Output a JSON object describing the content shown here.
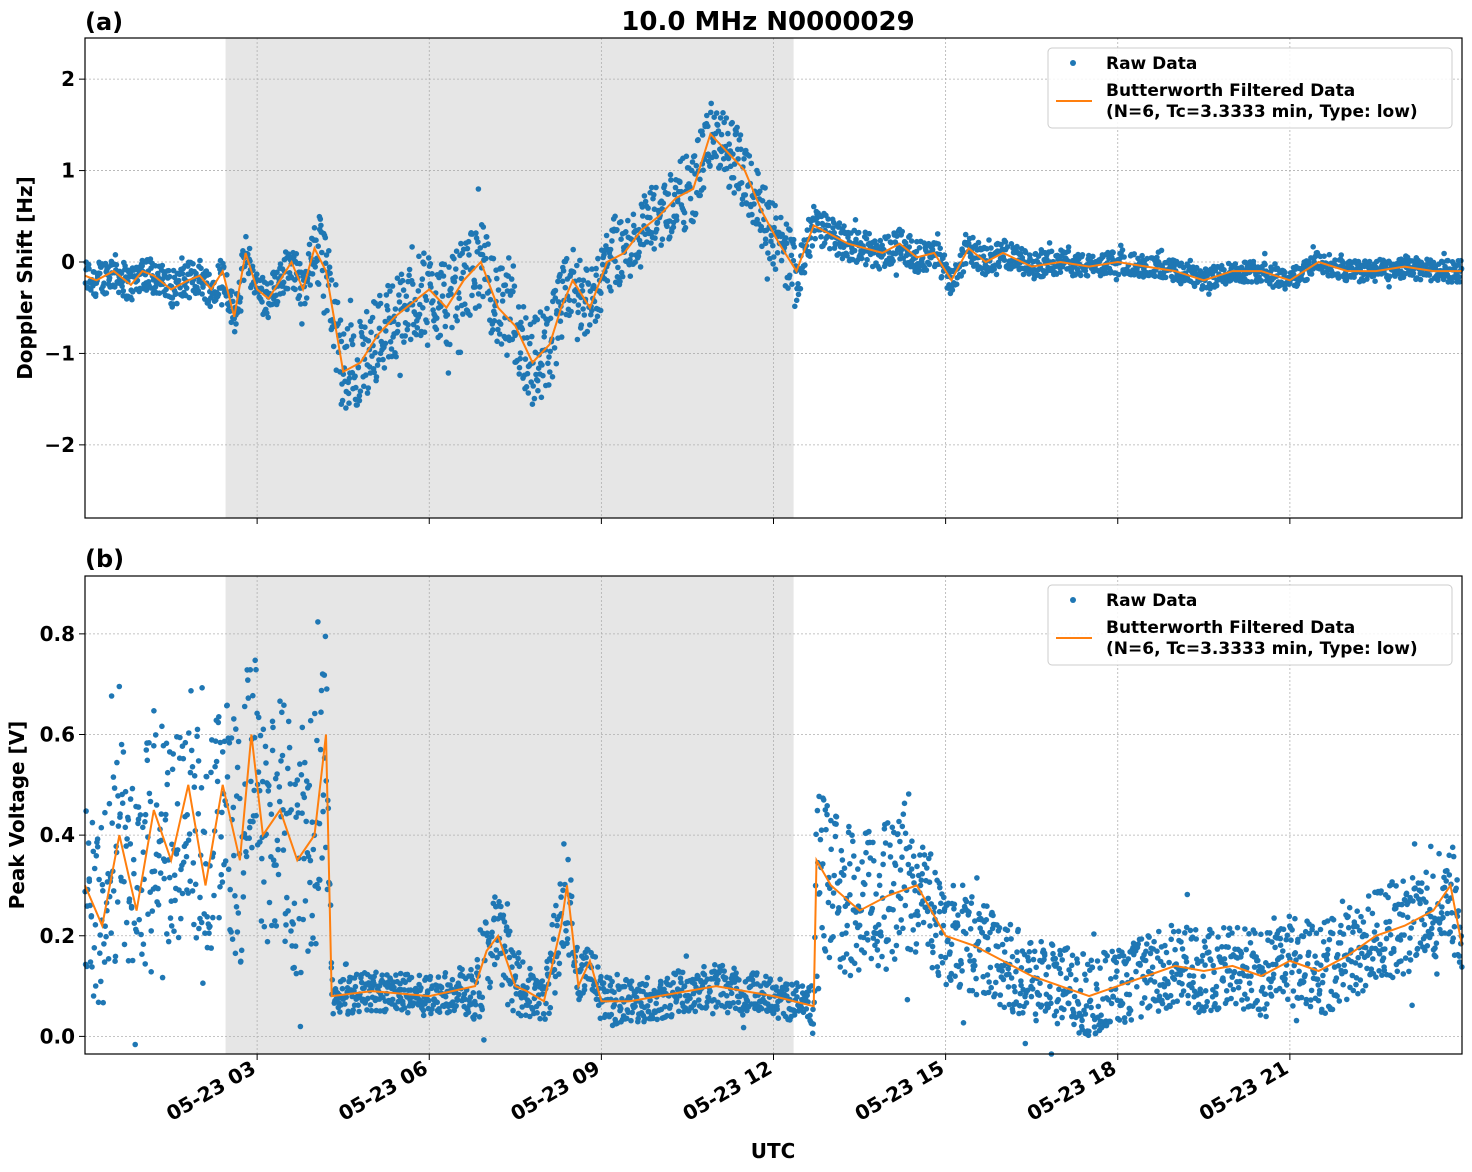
{
  "figure": {
    "title": "10.0 MHz N0000029",
    "xlabel": "UTC",
    "x_tick_labels": [
      "05-23 03",
      "05-23 06",
      "05-23 09",
      "05-23 12",
      "05-23 15",
      "05-23 18",
      "05-23 21"
    ]
  },
  "colors": {
    "raw": "#1f77b4",
    "filtered": "#ff7f0e",
    "shade": "#e6e6e6"
  },
  "legend": {
    "raw_label": "Raw Data",
    "filtered_line1": "Butterworth Filtered Data",
    "filtered_line2": "(N=6, Tc=3.3333 min, Type: low)"
  },
  "chart_data": [
    {
      "panel_label": "(a)",
      "type": "scatter",
      "ylabel": "Doppler Shift [Hz]",
      "xlim": [
        0,
        24
      ],
      "ylim": [
        -2.8,
        2.45
      ],
      "x_unit": "hours UTC on 05-23",
      "y_ticks": [
        -2,
        -1,
        0,
        1,
        2
      ],
      "y_tick_labels": [
        "−2",
        "−1",
        "0",
        "1",
        "2"
      ],
      "x_ticks": [
        3,
        6,
        9,
        12,
        15,
        18,
        21
      ],
      "shaded_span": [
        2.45,
        12.35
      ],
      "grid": true,
      "legend_position": "top-right",
      "filtered": {
        "x": [
          0,
          0.2,
          0.5,
          0.8,
          1.0,
          1.2,
          1.5,
          1.8,
          2.0,
          2.2,
          2.4,
          2.6,
          2.8,
          3.0,
          3.2,
          3.4,
          3.6,
          3.8,
          4.0,
          4.2,
          4.5,
          4.8,
          5.1,
          5.4,
          5.7,
          6.0,
          6.3,
          6.6,
          6.9,
          7.2,
          7.5,
          7.8,
          8.1,
          8.3,
          8.5,
          8.8,
          9.1,
          9.4,
          9.7,
          10.0,
          10.3,
          10.6,
          10.9,
          11.2,
          11.5,
          11.8,
          12.1,
          12.4,
          12.7,
          13.0,
          13.3,
          13.6,
          13.9,
          14.2,
          14.5,
          14.8,
          15.1,
          15.4,
          15.7,
          16.0,
          16.5,
          17.0,
          17.5,
          18.0,
          18.5,
          19.0,
          19.5,
          20.0,
          20.5,
          21.0,
          21.5,
          22.0,
          22.5,
          23.0,
          23.5,
          24.0
        ],
        "y": [
          -0.15,
          -0.2,
          -0.1,
          -0.25,
          -0.1,
          -0.15,
          -0.3,
          -0.2,
          -0.15,
          -0.3,
          -0.1,
          -0.6,
          0.1,
          -0.3,
          -0.4,
          -0.2,
          0.0,
          -0.3,
          0.15,
          -0.1,
          -1.2,
          -1.1,
          -0.8,
          -0.6,
          -0.45,
          -0.3,
          -0.5,
          -0.2,
          0.0,
          -0.5,
          -0.7,
          -1.1,
          -0.9,
          -0.5,
          -0.2,
          -0.5,
          0.0,
          0.1,
          0.35,
          0.5,
          0.7,
          0.8,
          1.4,
          1.2,
          1.0,
          0.55,
          0.2,
          -0.1,
          0.4,
          0.3,
          0.2,
          0.15,
          0.1,
          0.2,
          0.05,
          0.1,
          -0.2,
          0.15,
          0.0,
          0.1,
          -0.05,
          0.0,
          -0.05,
          0.0,
          -0.05,
          -0.1,
          -0.2,
          -0.1,
          -0.1,
          -0.2,
          0.0,
          -0.1,
          -0.1,
          -0.05,
          -0.1,
          -0.1
        ]
      },
      "raw_spread": {
        "x": [
          0,
          2.4,
          2.45,
          4.0,
          4.1,
          6.0,
          8.0,
          8.5,
          9.0,
          10.5,
          11.5,
          12.4,
          12.8,
          13.0,
          16.0,
          18.0,
          24.0
        ],
        "halfwidth": [
          0.2,
          0.2,
          0.2,
          0.25,
          0.5,
          0.45,
          0.5,
          0.4,
          0.35,
          0.4,
          0.4,
          0.35,
          0.2,
          0.2,
          0.15,
          0.12,
          0.12
        ]
      }
    },
    {
      "panel_label": "(b)",
      "type": "scatter",
      "ylabel": "Peak Voltage [V]",
      "xlim": [
        0,
        24
      ],
      "ylim": [
        -0.035,
        0.915
      ],
      "x_unit": "hours UTC on 05-23",
      "y_ticks": [
        0.0,
        0.2,
        0.4,
        0.6,
        0.8
      ],
      "y_tick_labels": [
        "0.0",
        "0.2",
        "0.4",
        "0.6",
        "0.8"
      ],
      "x_ticks": [
        3,
        6,
        9,
        12,
        15,
        18,
        21
      ],
      "shaded_span": [
        2.45,
        12.35
      ],
      "grid": true,
      "legend_position": "top-right",
      "filtered": {
        "x": [
          0,
          0.3,
          0.6,
          0.9,
          1.2,
          1.5,
          1.8,
          2.1,
          2.4,
          2.7,
          2.9,
          3.1,
          3.4,
          3.7,
          4.0,
          4.2,
          4.3,
          5.0,
          6.0,
          6.8,
          7.0,
          7.2,
          7.5,
          7.7,
          8.0,
          8.3,
          8.4,
          8.6,
          8.8,
          9.0,
          9.5,
          10.0,
          11.0,
          12.0,
          12.7,
          12.75,
          13.0,
          13.5,
          14.0,
          14.5,
          15.0,
          15.5,
          16.0,
          16.5,
          17.0,
          17.5,
          18.0,
          18.5,
          19.0,
          19.5,
          20.0,
          20.5,
          21.0,
          21.5,
          22.0,
          22.5,
          23.0,
          23.5,
          23.8,
          24.0
        ],
        "y": [
          0.3,
          0.22,
          0.4,
          0.25,
          0.45,
          0.35,
          0.5,
          0.3,
          0.5,
          0.35,
          0.6,
          0.4,
          0.45,
          0.35,
          0.4,
          0.6,
          0.08,
          0.09,
          0.08,
          0.1,
          0.17,
          0.2,
          0.1,
          0.09,
          0.07,
          0.22,
          0.3,
          0.1,
          0.15,
          0.07,
          0.07,
          0.08,
          0.1,
          0.08,
          0.06,
          0.35,
          0.3,
          0.25,
          0.28,
          0.3,
          0.2,
          0.18,
          0.15,
          0.12,
          0.1,
          0.08,
          0.1,
          0.12,
          0.14,
          0.13,
          0.14,
          0.12,
          0.15,
          0.13,
          0.16,
          0.2,
          0.22,
          0.25,
          0.3,
          0.18
        ]
      },
      "raw_spread": {
        "x": [
          0,
          4.2,
          4.3,
          6.5,
          7.0,
          7.5,
          8.0,
          8.3,
          8.6,
          12.7,
          12.75,
          14.0,
          15.0,
          18.0,
          24.0
        ],
        "halfwidth": [
          0.2,
          0.25,
          0.04,
          0.04,
          0.1,
          0.06,
          0.04,
          0.15,
          0.05,
          0.04,
          0.15,
          0.15,
          0.1,
          0.08,
          0.1
        ]
      }
    }
  ]
}
